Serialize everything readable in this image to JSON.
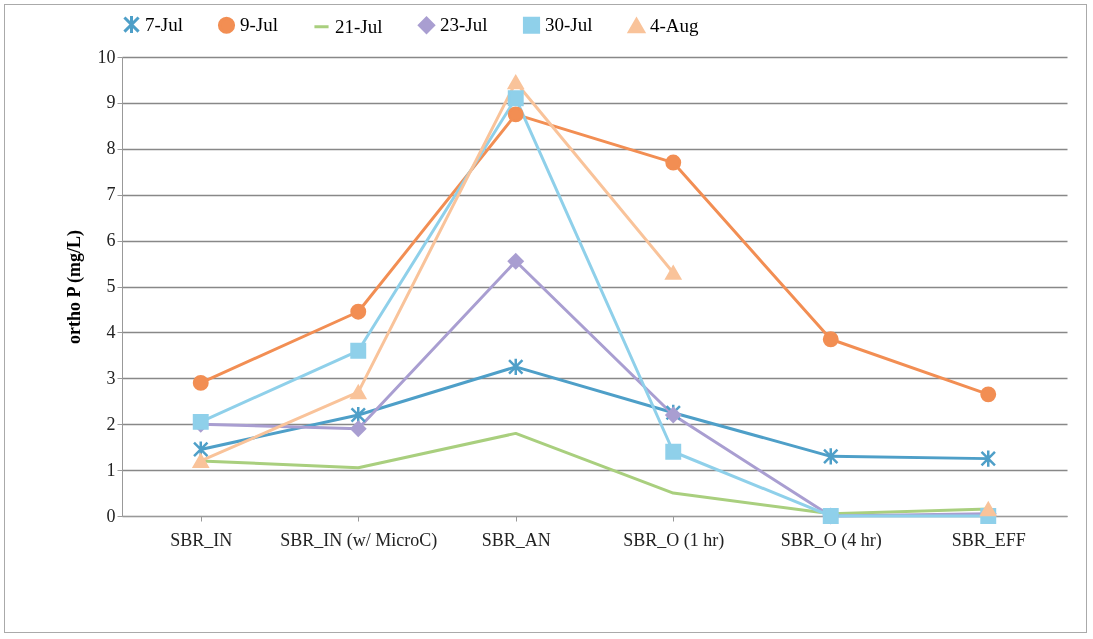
{
  "chart_data": {
    "type": "line",
    "ylabel": "ortho P (mg/L)",
    "categories": [
      "SBR_IN",
      "SBR_IN (w/ MicroC)",
      "SBR_AN",
      "SBR_O (1 hr)",
      "SBR_O (4 hr)",
      "SBR_EFF"
    ],
    "ylim": [
      0,
      10
    ],
    "yticks": [
      0,
      1,
      2,
      3,
      4,
      5,
      6,
      7,
      8,
      9,
      10
    ],
    "grid": "y",
    "legend": "top",
    "line_style": "solid",
    "series": [
      {
        "name": "7-Jul",
        "color": "#4e9fc8",
        "marker": "cross",
        "values": [
          1.45,
          2.2,
          3.25,
          2.25,
          1.3,
          1.25
        ]
      },
      {
        "name": "9-Jul",
        "color": "#f28e53",
        "marker": "circle",
        "values": [
          2.9,
          4.45,
          8.75,
          7.7,
          3.85,
          2.65
        ]
      },
      {
        "name": "21-Jul",
        "color": "#a9cf7e",
        "marker": "none",
        "values": [
          1.2,
          1.05,
          1.8,
          0.5,
          0.05,
          0.15
        ]
      },
      {
        "name": "23-Jul",
        "color": "#a99ed1",
        "marker": "diamond",
        "values": [
          2.0,
          1.9,
          5.55,
          2.2,
          0.0,
          0.05
        ]
      },
      {
        "name": "30-Jul",
        "color": "#8fd0ea",
        "marker": "square",
        "values": [
          2.05,
          3.6,
          9.1,
          1.4,
          0.0,
          0.0
        ]
      },
      {
        "name": "4-Aug",
        "color": "#f9c39a",
        "marker": "triangle",
        "values": [
          1.2,
          2.7,
          9.45,
          5.3,
          null,
          0.15
        ]
      }
    ]
  }
}
